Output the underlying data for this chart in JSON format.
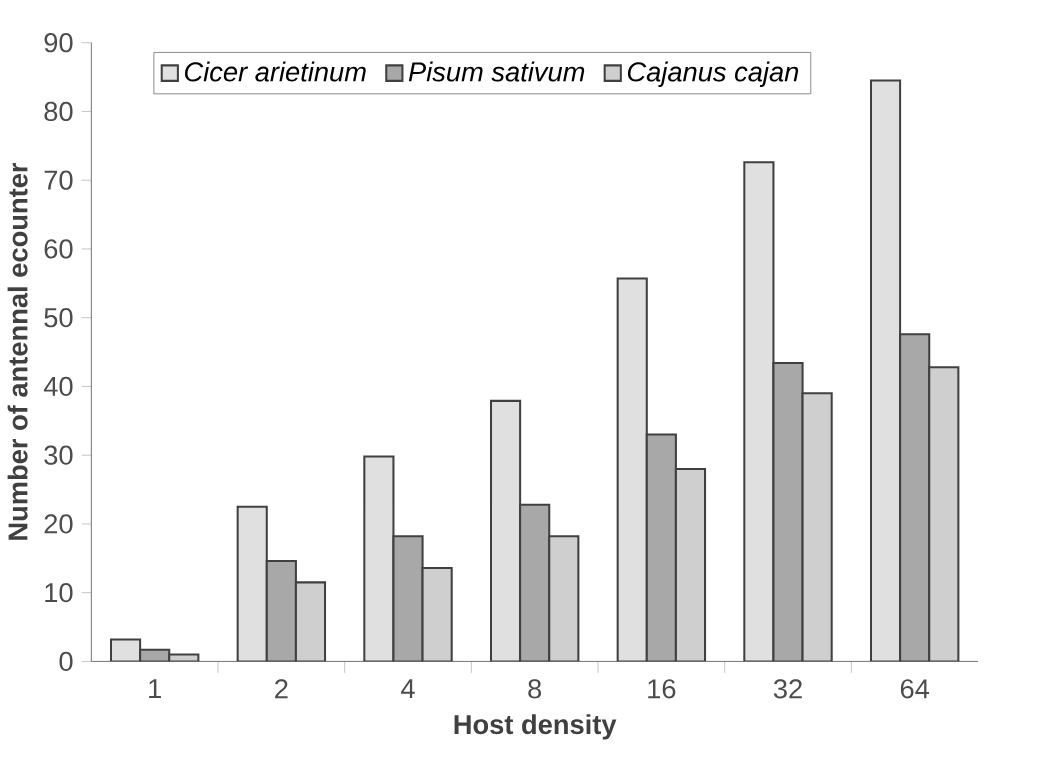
{
  "chart_data": {
    "type": "bar",
    "xlabel": "Host density",
    "ylabel": "Number of antennal ecounter",
    "categories": [
      "1",
      "2",
      "4",
      "8",
      "16",
      "32",
      "64"
    ],
    "series": [
      {
        "name": "Cicer arietinum",
        "color": "#e0e0e0",
        "values": [
          3.2,
          22.5,
          29.8,
          37.9,
          55.7,
          72.6,
          84.5
        ]
      },
      {
        "name": "Pisum sativum",
        "color": "#a8a8a8",
        "values": [
          1.7,
          14.6,
          18.2,
          22.8,
          33,
          43.4,
          47.6
        ]
      },
      {
        "name": "Cajanus cajan",
        "color": "#cfcfcf",
        "values": [
          1.0,
          11.5,
          13.6,
          18.2,
          28,
          39,
          42.8
        ]
      }
    ],
    "ylim": [
      0,
      90
    ],
    "yticks": [
      0,
      10,
      20,
      30,
      40,
      50,
      60,
      70,
      80,
      90
    ],
    "legend": "top left"
  }
}
